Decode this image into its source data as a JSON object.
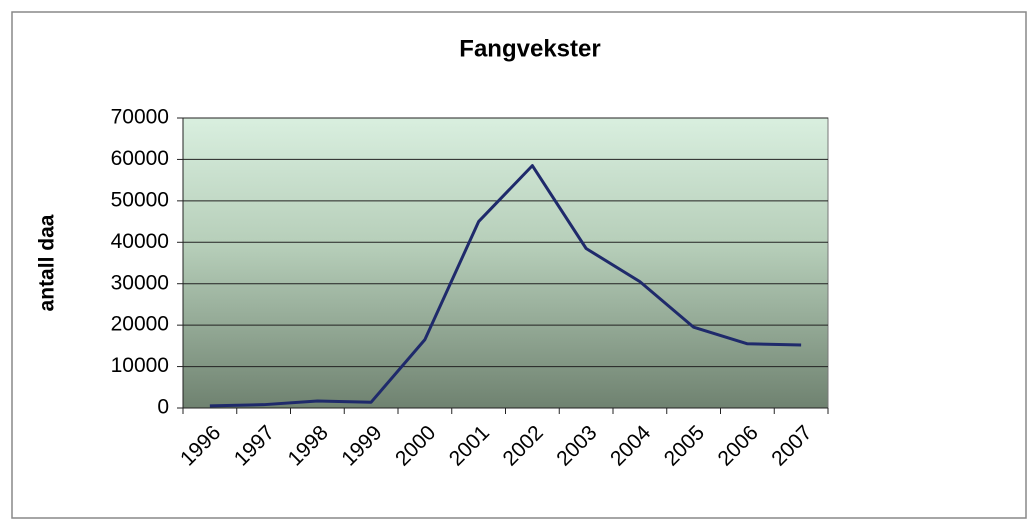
{
  "chart_data": {
    "type": "line",
    "title": "Fangvekster",
    "y_label": "antall daa",
    "categories": [
      "1996",
      "1997",
      "1998",
      "1999",
      "2000",
      "2001",
      "2002",
      "2003",
      "2004",
      "2005",
      "2006",
      "2007"
    ],
    "values": [
      500,
      800,
      1700,
      1400,
      16500,
      45000,
      58500,
      38500,
      30500,
      19500,
      15500,
      15200
    ],
    "color": "#1f2a6b",
    "ylim": [
      0,
      70000
    ],
    "yticks": [
      0,
      10000,
      20000,
      30000,
      40000,
      50000,
      60000,
      70000
    ],
    "grid": true
  }
}
